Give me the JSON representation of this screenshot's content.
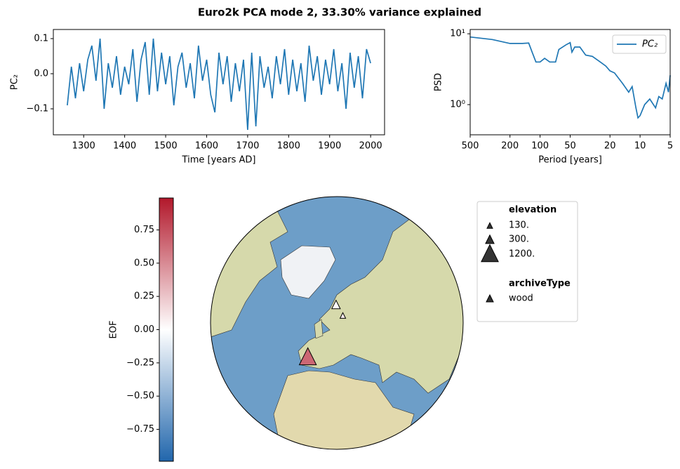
{
  "title": "Euro2k PCA mode 2, 33.30% variance explained",
  "chart_data": [
    {
      "type": "line",
      "xlabel": "Time [years AD]",
      "ylabel": "PC₂",
      "x": [
        1260,
        1270,
        1280,
        1290,
        1300,
        1310,
        1320,
        1330,
        1340,
        1350,
        1360,
        1370,
        1380,
        1390,
        1400,
        1410,
        1420,
        1430,
        1440,
        1450,
        1460,
        1470,
        1480,
        1490,
        1500,
        1510,
        1520,
        1530,
        1540,
        1550,
        1560,
        1570,
        1580,
        1590,
        1600,
        1610,
        1620,
        1630,
        1640,
        1650,
        1660,
        1670,
        1680,
        1690,
        1700,
        1710,
        1720,
        1730,
        1740,
        1750,
        1760,
        1770,
        1780,
        1790,
        1800,
        1810,
        1820,
        1830,
        1840,
        1850,
        1860,
        1870,
        1880,
        1890,
        1900,
        1910,
        1920,
        1930,
        1940,
        1950,
        1960,
        1970,
        1980,
        1990,
        2000
      ],
      "series": [
        {
          "color": "#1f77b4",
          "values": [
            -0.09,
            0.02,
            -0.07,
            0.03,
            -0.05,
            0.04,
            0.08,
            -0.02,
            0.1,
            -0.1,
            0.03,
            -0.04,
            0.05,
            -0.06,
            0.02,
            -0.03,
            0.07,
            -0.08,
            0.04,
            0.09,
            -0.06,
            0.1,
            -0.05,
            0.06,
            -0.03,
            0.05,
            -0.09,
            0.02,
            0.06,
            -0.04,
            0.03,
            -0.07,
            0.08,
            -0.02,
            0.04,
            -0.06,
            -0.11,
            0.06,
            -0.03,
            0.05,
            -0.08,
            0.03,
            -0.05,
            0.04,
            -0.16,
            0.06,
            -0.15,
            0.05,
            -0.04,
            0.02,
            -0.07,
            0.05,
            -0.03,
            0.07,
            -0.06,
            0.04,
            -0.05,
            0.03,
            -0.08,
            0.08,
            -0.02,
            0.05,
            -0.06,
            0.04,
            -0.03,
            0.07,
            -0.05,
            0.03,
            -0.1,
            0.06,
            -0.04,
            0.05,
            -0.07,
            0.07,
            0.03
          ]
        }
      ],
      "xlim": [
        1226,
        2034
      ],
      "xticks": [
        1300,
        1400,
        1500,
        1600,
        1700,
        1800,
        1900,
        2000
      ],
      "ylim": [
        -0.174,
        0.126
      ],
      "yticks": [
        {
          "value": -0.1,
          "label": "−0.1"
        },
        {
          "value": 0,
          "label": "0.0"
        },
        0.1
      ]
    },
    {
      "type": "line",
      "xscale": "log",
      "yscale": "log",
      "xlabel": "Period [years]",
      "ylabel": "PSD",
      "legend": "upper right",
      "x": [
        500,
        300,
        200,
        150,
        130,
        120,
        110,
        100,
        90,
        80,
        70,
        65,
        55,
        50,
        48,
        45,
        40,
        35,
        30,
        25,
        22,
        20,
        18,
        15,
        13,
        12,
        11,
        10.5,
        10,
        9,
        8,
        7,
        6.5,
        6,
        5.5,
        5.2,
        5
      ],
      "series": [
        {
          "name": "PC₂",
          "color": "#1f77b4",
          "values": [
            9,
            8.3,
            7.3,
            7.3,
            7.4,
            5.5,
            4,
            4,
            4.5,
            4,
            4,
            6,
            7,
            7.5,
            5.5,
            6.5,
            6.5,
            5,
            4.8,
            4,
            3.5,
            3,
            2.8,
            2,
            1.5,
            1.8,
            0.9,
            0.65,
            0.7,
            1,
            1.2,
            0.9,
            1.3,
            1.2,
            2,
            1.5,
            2.6
          ]
        }
      ],
      "xlim": [
        500,
        5
      ],
      "xticks": [
        500,
        200,
        100,
        50,
        20,
        10,
        5
      ],
      "ylim": [
        0.375,
        11.5
      ],
      "yticks": [
        {
          "value": 1,
          "label": "10⁰"
        },
        {
          "value": 10,
          "label": "10¹"
        }
      ]
    },
    {
      "type": "map",
      "projection": "orthographic",
      "points": {
        "lon": [
          2,
          19,
          26
        ],
        "lat": [
          42,
          68,
          63
        ],
        "values": [
          0.65,
          0.02,
          0.08
        ],
        "elevation": [
          1200,
          300,
          130
        ]
      },
      "colorbar": {
        "label": "EOF",
        "lim": [
          -0.99,
          0.99
        ],
        "colormap": [
          "#2166ac",
          "#ffffff",
          "#b2182b"
        ],
        "ticks": [
          {
            "value": -0.75,
            "label": "−0.75"
          },
          {
            "value": -0.5,
            "label": "−0.50"
          },
          {
            "value": -0.25,
            "label": "−0.25"
          },
          {
            "value": 0,
            "label": "0.00"
          },
          0.25,
          {
            "value": 0.5,
            "label": "0.50"
          },
          0.75
        ]
      },
      "legend": {
        "size_title": "elevation",
        "sizes": [
          {
            "value": 130,
            "label": "130."
          },
          {
            "value": 300,
            "label": "300."
          },
          {
            "value": 1200,
            "label": "1200."
          }
        ],
        "marker_title": "archiveType",
        "markers": [
          "wood"
        ]
      }
    }
  ]
}
